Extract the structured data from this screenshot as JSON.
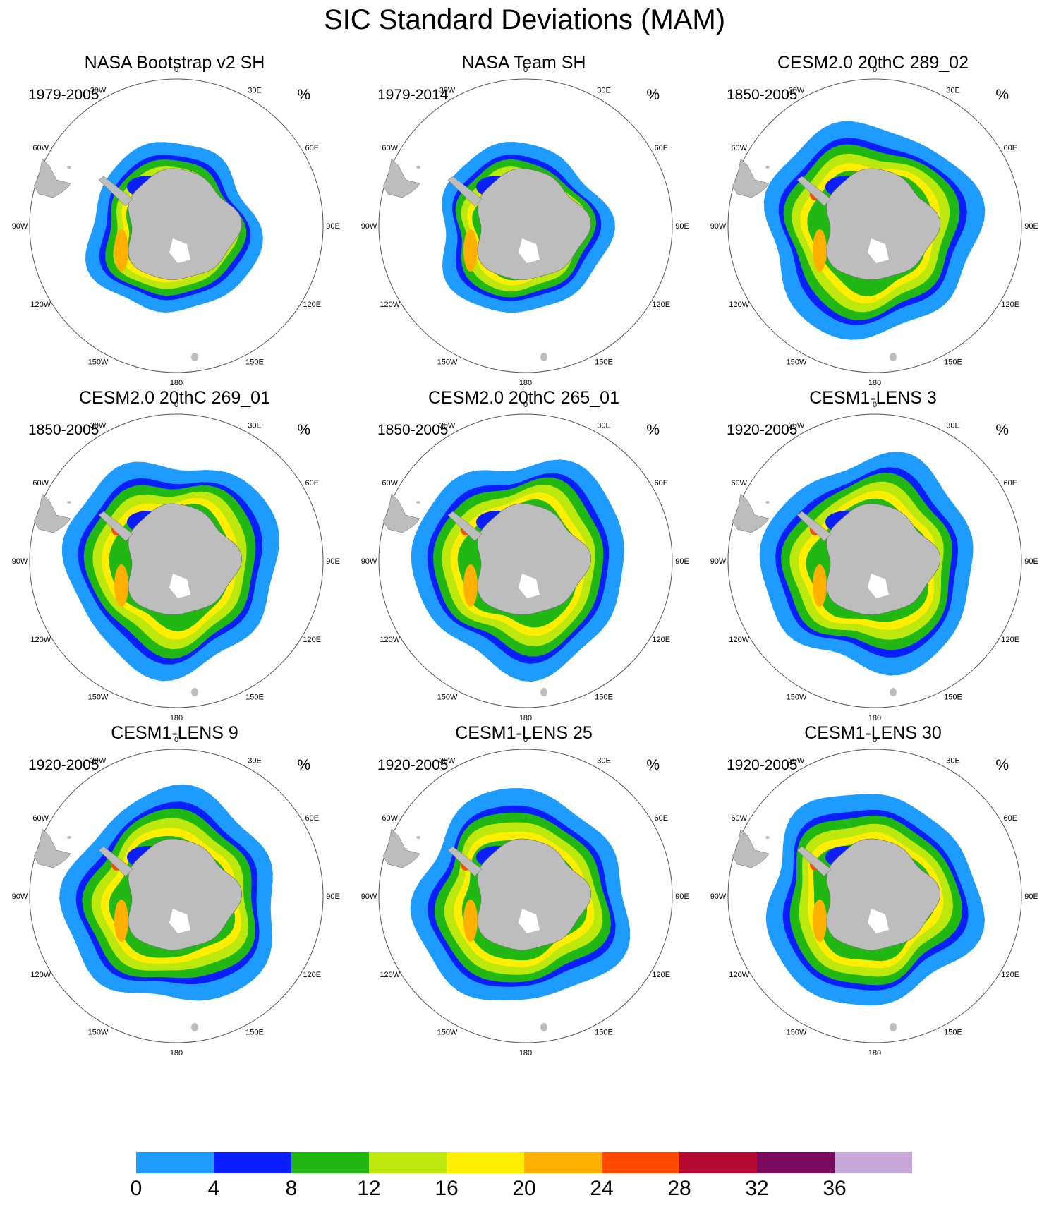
{
  "title": "SIC Standard Deviations (MAM)",
  "units": "%",
  "longitude_labels": [
    "0",
    "30E",
    "60E",
    "90E",
    "120E",
    "150E",
    "180",
    "150W",
    "120W",
    "90W",
    "60W",
    "30W"
  ],
  "colors": {
    "land": "#bdbdbd",
    "map_border": "#555555"
  },
  "panels": [
    {
      "title": "NASA Bootstrap v2 SH",
      "period": "1979-2005",
      "source": "obs_bootstrap"
    },
    {
      "title": "NASA Team SH",
      "period": "1979-2014",
      "source": "obs_team"
    },
    {
      "title": "CESM2.0 20thC 289_02",
      "period": "1850-2005",
      "source": "cesm2"
    },
    {
      "title": "CESM2.0 20thC 269_01",
      "period": "1850-2005",
      "source": "cesm2"
    },
    {
      "title": "CESM2.0 20thC 265_01",
      "period": "1850-2005",
      "source": "cesm2"
    },
    {
      "title": "CESM1-LENS 3",
      "period": "1920-2005",
      "source": "cesm1"
    },
    {
      "title": "CESM1-LENS 9",
      "period": "1920-2005",
      "source": "cesm1"
    },
    {
      "title": "CESM1-LENS 25",
      "period": "1920-2005",
      "source": "cesm1"
    },
    {
      "title": "CESM1-LENS 30",
      "period": "1920-2005",
      "source": "cesm1"
    }
  ],
  "colorbar": {
    "tick_labels": [
      "0",
      "4",
      "8",
      "12",
      "16",
      "20",
      "24",
      "28",
      "32",
      "36"
    ],
    "colors": [
      "#1e9bff",
      "#0a1eff",
      "#22b814",
      "#bde80e",
      "#ffee00",
      "#ffb000",
      "#ff4a00",
      "#b40a32",
      "#7a0a5e",
      "#c8a8d8"
    ]
  }
}
